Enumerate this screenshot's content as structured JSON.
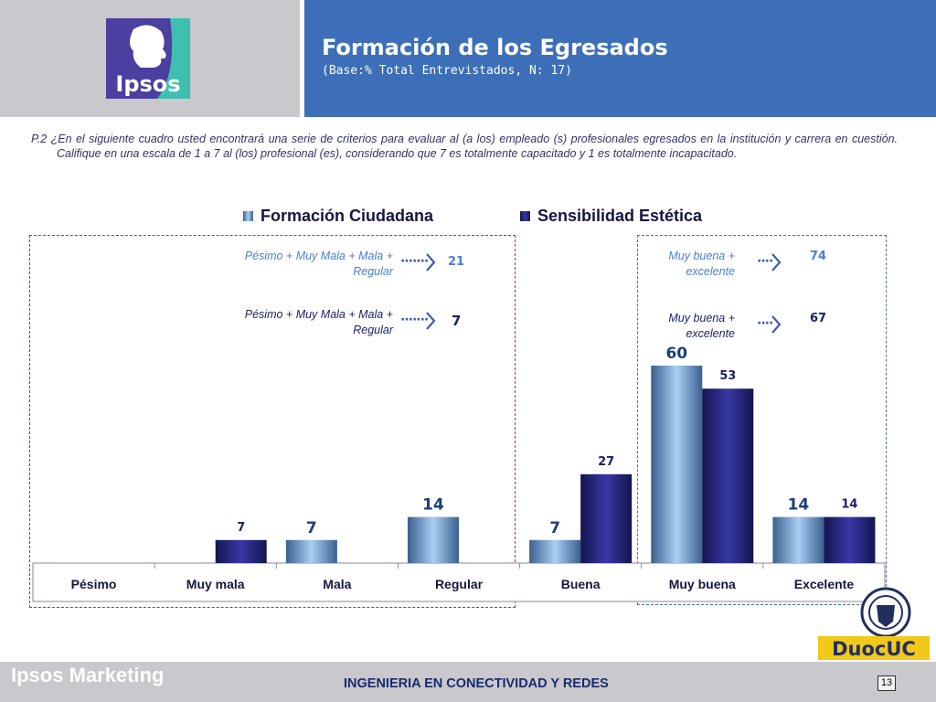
{
  "header": {
    "logo_text": "Ipsos",
    "title": "Formación de los Egresados",
    "subtitle": "(Base:% Total Entrevistados, N: 17)"
  },
  "question": "P.2 ¿En el siguiente cuadro usted encontrará una serie de criterios para evaluar al (a los) empleado (s) profesionales egresados en la institución y carrera en cuestión. Califique en una escala de 1 a 7 al (los) profesional (es), considerando que 7 es totalmente capacitado y 1 es totalmente incapacitado.",
  "annotations": {
    "left": [
      {
        "label": "Pésimo + Muy Mala + Mala + Regular",
        "value": "21",
        "color": "#4a7fd0"
      },
      {
        "label": "Pésimo + Muy Mala + Mala + Regular",
        "value": "7",
        "color": "#1c1f66"
      }
    ],
    "right": [
      {
        "label": "Muy buena + excelente",
        "value": "74",
        "color": "#4a7fd0"
      },
      {
        "label": "Muy buena + excelente",
        "value": "67",
        "color": "#1c1f66"
      }
    ]
  },
  "chart_data": {
    "type": "bar",
    "categories": [
      "Pésimo",
      "Muy mala",
      "Mala",
      "Regular",
      "Buena",
      "Muy buena",
      "Excelente"
    ],
    "series": [
      {
        "name": "Formación Ciudadana",
        "color": "#7fb0e6",
        "values": [
          0,
          0,
          7,
          14,
          7,
          60,
          14
        ]
      },
      {
        "name": "Sensibilidad Estética",
        "color": "#22237a",
        "values": [
          0,
          7,
          0,
          0,
          27,
          53,
          14
        ]
      }
    ],
    "legend_position": "top",
    "grid": false
  },
  "footer": {
    "brand": "Ipsos Marketing",
    "text": "INGENIERIA EN CONECTIVIDAD Y REDES",
    "page": "13",
    "duoc_logo": "DuocUC"
  }
}
